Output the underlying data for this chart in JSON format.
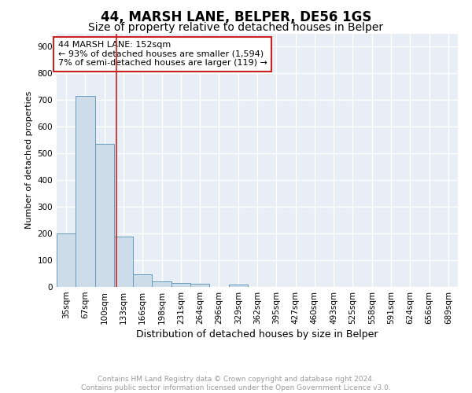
{
  "title": "44, MARSH LANE, BELPER, DE56 1GS",
  "subtitle": "Size of property relative to detached houses in Belper",
  "xlabel": "Distribution of detached houses by size in Belper",
  "ylabel": "Number of detached properties",
  "bar_color": "#ccdce8",
  "bar_edge_color": "#6699bb",
  "background_color": "#e8eef5",
  "grid_color": "#ffffff",
  "categories": [
    "35sqm",
    "67sqm",
    "100sqm",
    "133sqm",
    "166sqm",
    "198sqm",
    "231sqm",
    "264sqm",
    "296sqm",
    "329sqm",
    "362sqm",
    "395sqm",
    "427sqm",
    "460sqm",
    "493sqm",
    "525sqm",
    "558sqm",
    "591sqm",
    "624sqm",
    "656sqm",
    "689sqm"
  ],
  "values": [
    200,
    715,
    537,
    190,
    46,
    20,
    14,
    12,
    0,
    10,
    0,
    0,
    0,
    0,
    0,
    0,
    0,
    0,
    0,
    0,
    0
  ],
  "ylim": [
    0,
    950
  ],
  "yticks": [
    0,
    100,
    200,
    300,
    400,
    500,
    600,
    700,
    800,
    900
  ],
  "vline_x": 2.62,
  "annotation_text": "44 MARSH LANE: 152sqm\n← 93% of detached houses are smaller (1,594)\n7% of semi-detached houses are larger (119) →",
  "footnote": "Contains HM Land Registry data © Crown copyright and database right 2024.\nContains public sector information licensed under the Open Government Licence v3.0.",
  "title_fontsize": 12,
  "subtitle_fontsize": 10,
  "xlabel_fontsize": 9,
  "ylabel_fontsize": 8,
  "tick_fontsize": 7.5,
  "annotation_fontsize": 8,
  "footnote_fontsize": 6.5
}
